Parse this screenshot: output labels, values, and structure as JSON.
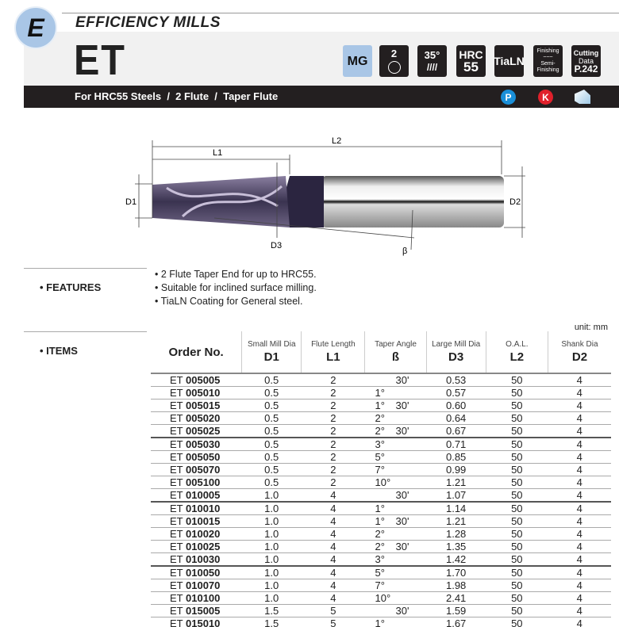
{
  "header": {
    "section_letter": "E",
    "series": "EFFICIENCY MILLS",
    "model": "ET",
    "subtitle": "For HRC55 Steels  /  2 Flute  /  Taper Flute",
    "badges": {
      "material": "MG",
      "flutes": "2",
      "helix": "35°",
      "hrc_label": "HRC",
      "hrc_value": "55",
      "coating": "TiaLN",
      "finish_top": "Finishing",
      "finish_bottom": "Semi-Finishing",
      "cutting_data_1": "Cutting",
      "cutting_data_2": "Data",
      "cutting_data_page": "P.242"
    },
    "materials": [
      {
        "label": "P",
        "color": "#1a8fd8"
      },
      {
        "label": "K",
        "color": "#e0202b"
      }
    ],
    "accent_color": "#a9c6e6"
  },
  "diagram": {
    "L1": "L1",
    "L2": "L2",
    "D1": "D1",
    "D2": "D2",
    "D3": "D3",
    "beta": "β"
  },
  "features": {
    "label": "FEATURES",
    "items": [
      "2 Flute Taper End for up to HRC55.",
      "Suitable for inclined surface milling.",
      "TiaLN Coating for General steel."
    ]
  },
  "items": {
    "label": "ITEMS",
    "unit": "unit: mm",
    "columns": [
      {
        "title": "Order No."
      },
      {
        "sub": "Small Mill Dia",
        "sym": "D1"
      },
      {
        "sub": "Flute Length",
        "sym": "L1"
      },
      {
        "sub": "Taper Angle",
        "sym": "ß"
      },
      {
        "sub": "Large Mill Dia",
        "sym": "D3"
      },
      {
        "sub": "O.A.L.",
        "sym": "L2"
      },
      {
        "sub": "Shank Dia",
        "sym": "D2"
      }
    ],
    "rows": [
      {
        "prefix": "ET",
        "code": "005005",
        "d1": "0.5",
        "l1": "2",
        "deg": "",
        "min": "30'",
        "d3": "0.53",
        "l2": "50",
        "d2": "4"
      },
      {
        "prefix": "ET",
        "code": "005010",
        "d1": "0.5",
        "l1": "2",
        "deg": "1°",
        "min": "",
        "d3": "0.57",
        "l2": "50",
        "d2": "4"
      },
      {
        "prefix": "ET",
        "code": "005015",
        "d1": "0.5",
        "l1": "2",
        "deg": "1°",
        "min": "30'",
        "d3": "0.60",
        "l2": "50",
        "d2": "4"
      },
      {
        "prefix": "ET",
        "code": "005020",
        "d1": "0.5",
        "l1": "2",
        "deg": "2°",
        "min": "",
        "d3": "0.64",
        "l2": "50",
        "d2": "4"
      },
      {
        "prefix": "ET",
        "code": "005025",
        "d1": "0.5",
        "l1": "2",
        "deg": "2°",
        "min": "30'",
        "d3": "0.67",
        "l2": "50",
        "d2": "4"
      },
      {
        "prefix": "ET",
        "code": "005030",
        "d1": "0.5",
        "l1": "2",
        "deg": "3°",
        "min": "",
        "d3": "0.71",
        "l2": "50",
        "d2": "4"
      },
      {
        "prefix": "ET",
        "code": "005050",
        "d1": "0.5",
        "l1": "2",
        "deg": "5°",
        "min": "",
        "d3": "0.85",
        "l2": "50",
        "d2": "4"
      },
      {
        "prefix": "ET",
        "code": "005070",
        "d1": "0.5",
        "l1": "2",
        "deg": "7°",
        "min": "",
        "d3": "0.99",
        "l2": "50",
        "d2": "4"
      },
      {
        "prefix": "ET",
        "code": "005100",
        "d1": "0.5",
        "l1": "2",
        "deg": "10°",
        "min": "",
        "d3": "1.21",
        "l2": "50",
        "d2": "4"
      },
      {
        "prefix": "ET",
        "code": "010005",
        "d1": "1.0",
        "l1": "4",
        "deg": "",
        "min": "30'",
        "d3": "1.07",
        "l2": "50",
        "d2": "4"
      },
      {
        "prefix": "ET",
        "code": "010010",
        "d1": "1.0",
        "l1": "4",
        "deg": "1°",
        "min": "",
        "d3": "1.14",
        "l2": "50",
        "d2": "4"
      },
      {
        "prefix": "ET",
        "code": "010015",
        "d1": "1.0",
        "l1": "4",
        "deg": "1°",
        "min": "30'",
        "d3": "1.21",
        "l2": "50",
        "d2": "4"
      },
      {
        "prefix": "ET",
        "code": "010020",
        "d1": "1.0",
        "l1": "4",
        "deg": "2°",
        "min": "",
        "d3": "1.28",
        "l2": "50",
        "d2": "4"
      },
      {
        "prefix": "ET",
        "code": "010025",
        "d1": "1.0",
        "l1": "4",
        "deg": "2°",
        "min": "30'",
        "d3": "1.35",
        "l2": "50",
        "d2": "4"
      },
      {
        "prefix": "ET",
        "code": "010030",
        "d1": "1.0",
        "l1": "4",
        "deg": "3°",
        "min": "",
        "d3": "1.42",
        "l2": "50",
        "d2": "4"
      },
      {
        "prefix": "ET",
        "code": "010050",
        "d1": "1.0",
        "l1": "4",
        "deg": "5°",
        "min": "",
        "d3": "1.70",
        "l2": "50",
        "d2": "4"
      },
      {
        "prefix": "ET",
        "code": "010070",
        "d1": "1.0",
        "l1": "4",
        "deg": "7°",
        "min": "",
        "d3": "1.98",
        "l2": "50",
        "d2": "4"
      },
      {
        "prefix": "ET",
        "code": "010100",
        "d1": "1.0",
        "l1": "4",
        "deg": "10°",
        "min": "",
        "d3": "2.41",
        "l2": "50",
        "d2": "4"
      },
      {
        "prefix": "ET",
        "code": "015005",
        "d1": "1.5",
        "l1": "5",
        "deg": "",
        "min": "30'",
        "d3": "1.59",
        "l2": "50",
        "d2": "4"
      },
      {
        "prefix": "ET",
        "code": "015010",
        "d1": "1.5",
        "l1": "5",
        "deg": "1°",
        "min": "",
        "d3": "1.67",
        "l2": "50",
        "d2": "4"
      }
    ]
  }
}
